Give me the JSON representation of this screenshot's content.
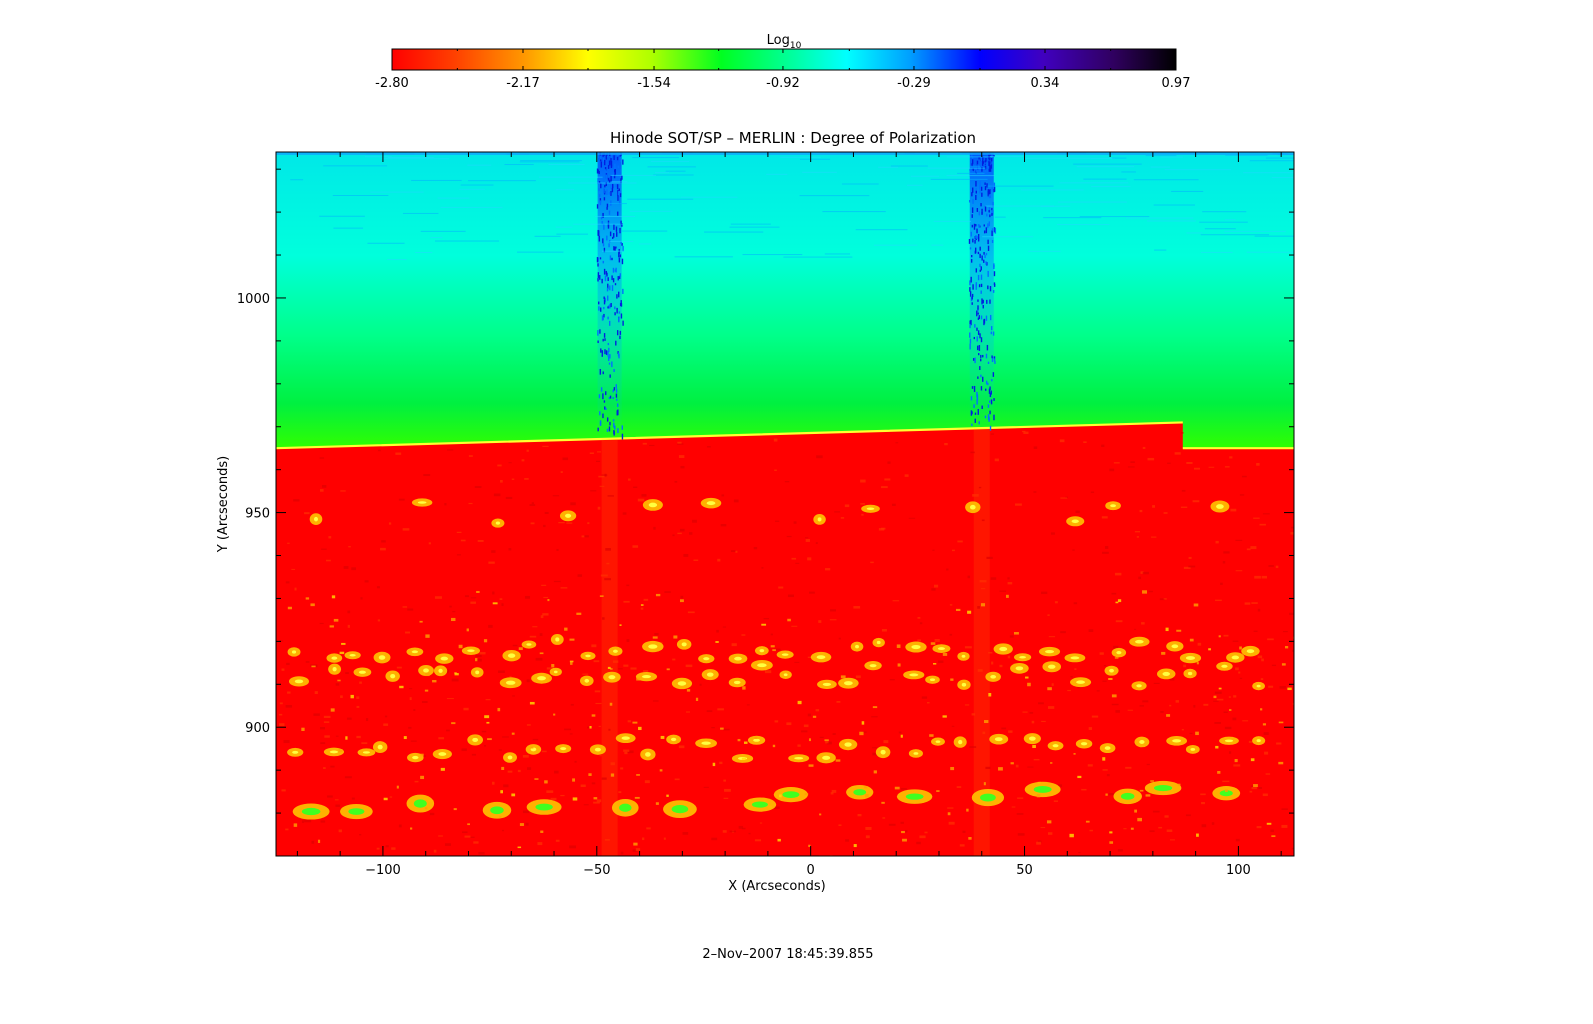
{
  "chart_data": {
    "type": "heatmap",
    "title": "Hinode SOT/SP – MERLIN : Degree of Polarization",
    "xlabel": "X (Arcseconds)",
    "ylabel": "Y (Arcseconds)",
    "xlim": [
      -125,
      113
    ],
    "ylim": [
      870,
      1034
    ],
    "xticks": [
      -100,
      -50,
      0,
      50,
      100
    ],
    "yticks": [
      900,
      950,
      1000
    ],
    "colorbar": {
      "title_main": "Log",
      "title_sub": "10",
      "range": [
        -2.8,
        0.97
      ],
      "ticks": [
        "-2.80",
        "-2.17",
        "-1.54",
        "-0.92",
        "-0.29",
        "0.34",
        "0.97"
      ],
      "colormap": [
        "#ff0000",
        "#ff8000",
        "#ffff00",
        "#00ff00",
        "#00ffff",
        "#0000ff",
        "#8000ff",
        "#000000"
      ]
    },
    "field": {
      "limb_y_left": 965,
      "limb_y_right": 971,
      "limb_step_x": 87,
      "limb_y_after_step": 965,
      "vertical_streaks_x": [
        -47,
        40
      ],
      "disk_value": -2.8,
      "off_limb_value_near": -0.92,
      "off_limb_value_far": -0.4,
      "bright_rows_y": [
        880,
        895,
        912,
        918,
        950
      ]
    },
    "timestamp": "2–Nov–2007 18:45:39.855"
  }
}
